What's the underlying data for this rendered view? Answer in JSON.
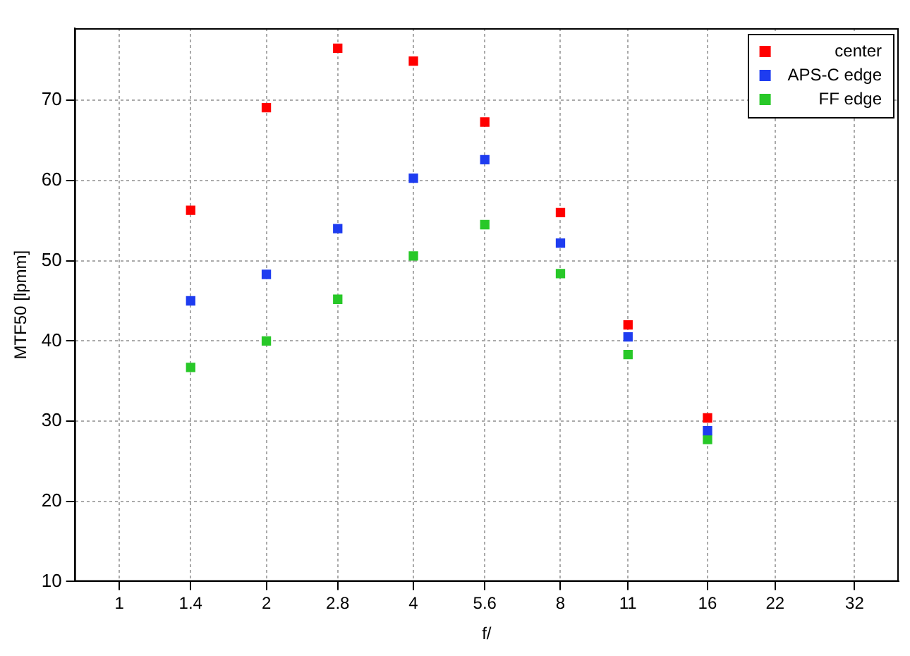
{
  "chart_data": {
    "type": "scatter",
    "xlabel": "f/",
    "ylabel": "MTF50 [lpmm]",
    "x": [
      1.4,
      2,
      2.8,
      4,
      5.6,
      8,
      11,
      16
    ],
    "series": [
      {
        "name": "center",
        "color": "#ff0000",
        "values": [
          56.3,
          69.1,
          76.5,
          74.9,
          67.3,
          56.0,
          42.0,
          30.4
        ]
      },
      {
        "name": "APS-C edge",
        "color": "#1e3cf0",
        "values": [
          45.0,
          48.3,
          54.0,
          60.3,
          62.6,
          52.2,
          40.5,
          28.8
        ]
      },
      {
        "name": "FF edge",
        "color": "#28c828",
        "values": [
          36.7,
          40.0,
          45.2,
          50.6,
          54.5,
          48.4,
          38.3,
          27.7
        ]
      }
    ],
    "log": "x",
    "xlim": [
      0.81,
      39.4
    ],
    "xticks": [
      1,
      1.4,
      2,
      2.8,
      4,
      5.6,
      8,
      11,
      16,
      22,
      32
    ],
    "ylim": [
      10,
      79
    ],
    "yticks": [
      10,
      20,
      30,
      40,
      50,
      60,
      70
    ],
    "grid": true,
    "legend": "top right",
    "marker": "square"
  }
}
